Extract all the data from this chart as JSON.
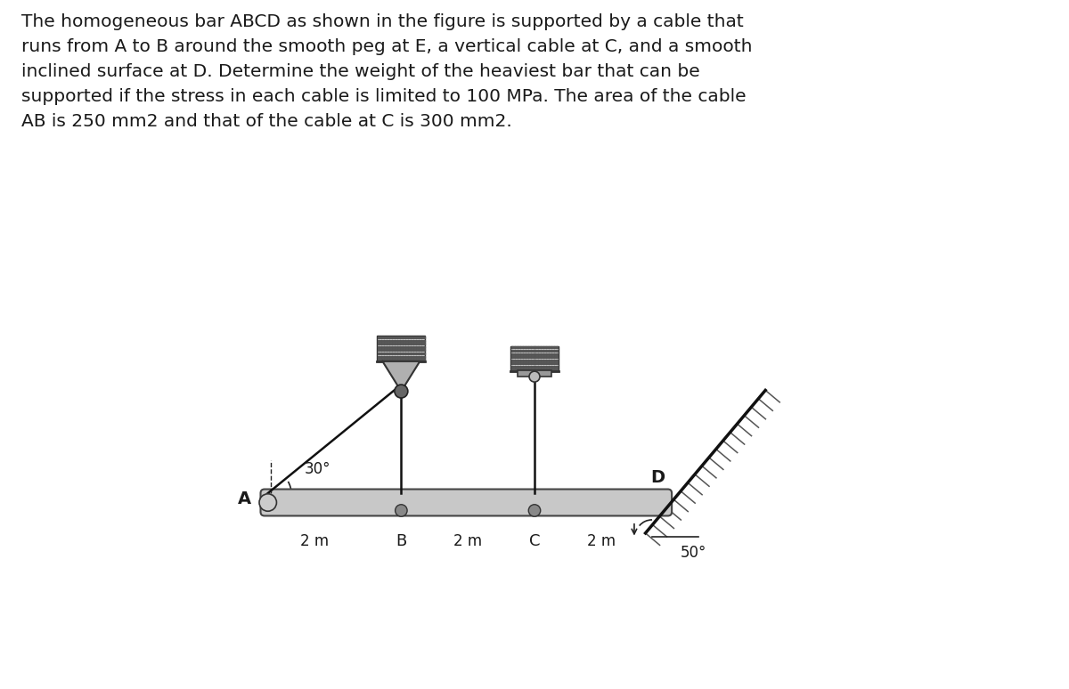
{
  "page_bg": "#ffffff",
  "text_color": "#1a1a1a",
  "problem_text": "The homogeneous bar ABCD as shown in the figure is supported by a cable that\nruns from A to B around the smooth peg at E, a vertical cable at C, and a smooth\ninclined surface at D. Determine the weight of the heaviest bar that can be\nsupported if the stress in each cable is limited to 100 MPa. The area of the cable\nAB is 250 mm2 and that of the cable at C is 300 mm2.",
  "text_fontsize": 14.5,
  "fig_width": 12.0,
  "fig_height": 7.74,
  "bar_color": "#c8c8c8",
  "bar_edge_color": "#444444",
  "cable_color": "#111111",
  "label_A": "A",
  "label_B": "B",
  "label_C": "C",
  "label_D": "D",
  "label_2m": "2 m",
  "label_30deg": "30°",
  "label_50deg": "50°"
}
